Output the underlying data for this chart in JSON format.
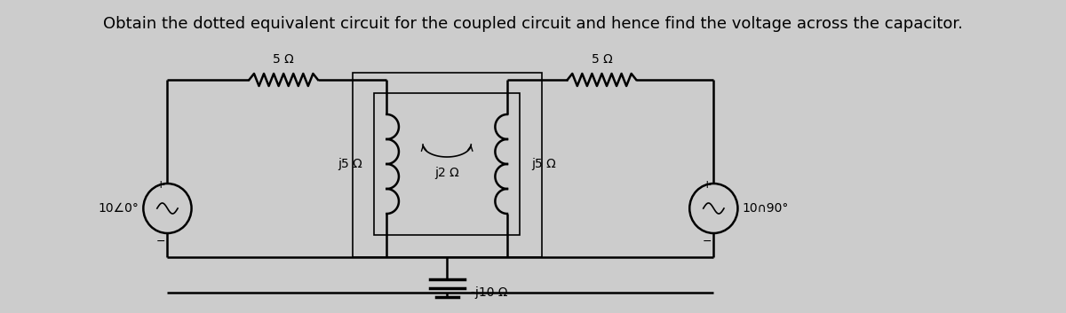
{
  "title": "Obtain the dotted equivalent circuit for the coupled circuit and hence find the voltage across the capacitor.",
  "title_fontsize": 13,
  "bg_color": "#cccccc",
  "line_color": "#000000",
  "text_color": "#000000",
  "circuit": {
    "left_source_label": "10∠0°",
    "right_source_label": "10∩90°",
    "res_left_label": "5 Ω",
    "res_right_label": "5 Ω",
    "ind_left_label": "j5 Ω",
    "ind_mid_label": "j2 Ω",
    "ind_right_label": "j5 Ω",
    "cap_label": "-j10 Ω"
  }
}
